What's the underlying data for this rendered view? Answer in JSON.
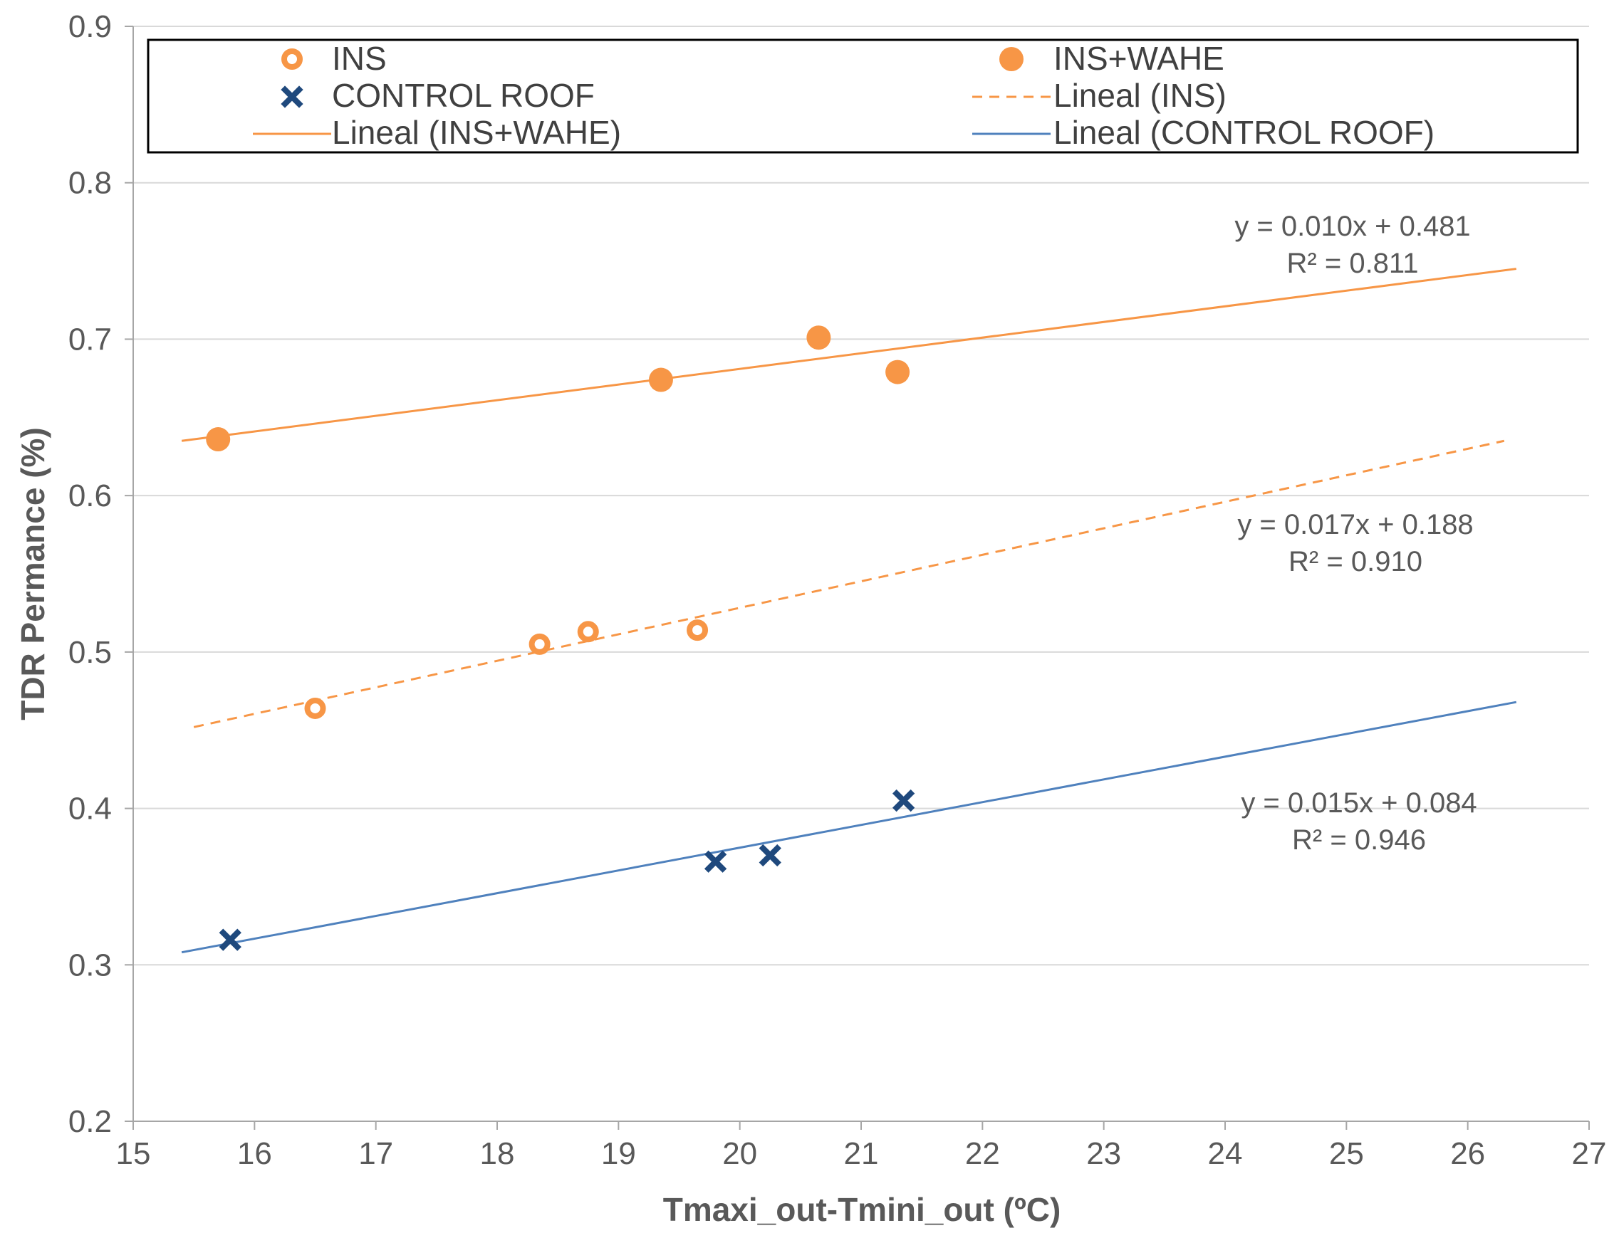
{
  "chart_data": {
    "type": "scatter",
    "xlabel": "Tmaxi_out-Tmini_out (ºC)",
    "ylabel": "TDR Permance (%)",
    "xlim": [
      15,
      27
    ],
    "ylim": [
      0.2,
      0.9
    ],
    "xticks": [
      "15",
      "16",
      "17",
      "18",
      "19",
      "20",
      "21",
      "22",
      "23",
      "24",
      "25",
      "26",
      "27"
    ],
    "yticks": [
      "0.2",
      "0.3",
      "0.4",
      "0.5",
      "0.6",
      "0.7",
      "0.8",
      "0.9"
    ],
    "grid": "horizontal",
    "legend_position": "top",
    "colors": {
      "ins": "#F79646",
      "ins_wahe": "#F79646",
      "control": "#1F497D",
      "control_line": "#4F81BD"
    },
    "series": [
      {
        "name": "INS",
        "marker": "open-circle",
        "x": [
          16.5,
          18.35,
          18.75,
          19.65
        ],
        "y": [
          0.464,
          0.505,
          0.513,
          0.514
        ]
      },
      {
        "name": "INS+WAHE",
        "marker": "filled-circle",
        "x": [
          15.7,
          19.35,
          20.65,
          21.3
        ],
        "y": [
          0.636,
          0.674,
          0.701,
          0.679
        ]
      },
      {
        "name": "CONTROL ROOF",
        "marker": "x",
        "x": [
          15.8,
          19.8,
          20.25,
          21.35
        ],
        "y": [
          0.316,
          0.366,
          0.37,
          0.405
        ]
      }
    ],
    "trendlines": [
      {
        "name": "Lineal (INS)",
        "style": "dashed",
        "x": [
          15.5,
          26.3
        ],
        "y": [
          0.452,
          0.635
        ]
      },
      {
        "name": "Lineal (INS+WAHE)",
        "style": "solid",
        "x": [
          15.4,
          26.4
        ],
        "y": [
          0.635,
          0.745
        ]
      },
      {
        "name": "Lineal (CONTROL ROOF)",
        "style": "solid",
        "x": [
          15.4,
          26.4
        ],
        "y": [
          0.308,
          0.468
        ]
      }
    ],
    "legend": [
      "INS",
      "INS+WAHE",
      "CONTROL ROOF",
      "Lineal (INS)",
      "Lineal (INS+WAHE)",
      "Lineal (CONTROL ROOF)"
    ],
    "annotations": {
      "ins_wahe_eq": "y = 0.010x + 0.481",
      "ins_wahe_r2": "R² = 0.811",
      "ins_eq": "y = 0.017x + 0.188",
      "ins_r2": "R² = 0.910",
      "control_eq": "y = 0.015x + 0.084",
      "control_r2": "R² = 0.946"
    }
  }
}
